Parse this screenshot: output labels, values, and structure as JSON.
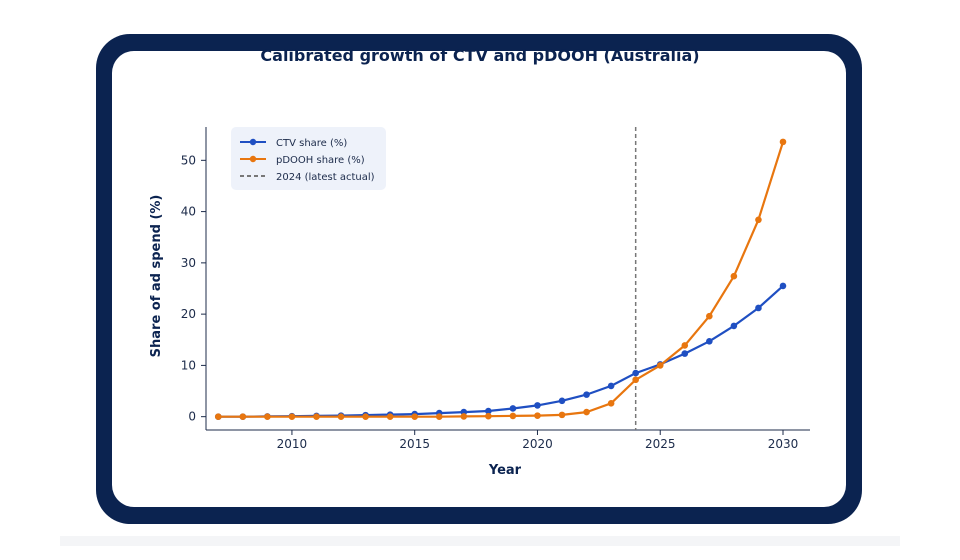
{
  "chart_data": {
    "type": "line",
    "title": "Calibrated growth of CTV and pDOOH (Australia)",
    "xlabel": "Year",
    "ylabel": "Share of ad spend (%)",
    "xlim": [
      2006.5,
      2031.1
    ],
    "ylim": [
      -2.6,
      56.5
    ],
    "xticks": [
      2010,
      2015,
      2020,
      2025,
      2030
    ],
    "yticks": [
      0,
      10,
      20,
      30,
      40,
      50
    ],
    "x": [
      2007,
      2008,
      2009,
      2010,
      2011,
      2012,
      2013,
      2014,
      2015,
      2016,
      2017,
      2018,
      2019,
      2020,
      2021,
      2022,
      2023,
      2024,
      2025,
      2026,
      2027,
      2028,
      2029,
      2030
    ],
    "series": [
      {
        "name": "CTV share (%)",
        "color": "#1f4fc2",
        "values": [
          0.0,
          0.0,
          0.05,
          0.1,
          0.15,
          0.2,
          0.3,
          0.4,
          0.5,
          0.7,
          0.9,
          1.1,
          1.6,
          2.2,
          3.1,
          4.3,
          6.0,
          8.5,
          10.2,
          12.3,
          14.7,
          17.7,
          21.2,
          25.5
        ]
      },
      {
        "name": "pDOOH share (%)",
        "color": "#e8760f",
        "values": [
          0.0,
          0.0,
          0.0,
          0.0,
          0.0,
          0.0,
          0.0,
          0.0,
          0.0,
          0.0,
          0.05,
          0.1,
          0.15,
          0.2,
          0.35,
          0.9,
          2.6,
          7.2,
          10.0,
          13.9,
          19.6,
          27.4,
          38.4,
          53.6
        ]
      }
    ],
    "reference_line": {
      "name": "2024 (latest actual)",
      "x": 2024,
      "color": "#777777",
      "style": "dashed"
    },
    "legend": "top-left",
    "grid": false
  }
}
